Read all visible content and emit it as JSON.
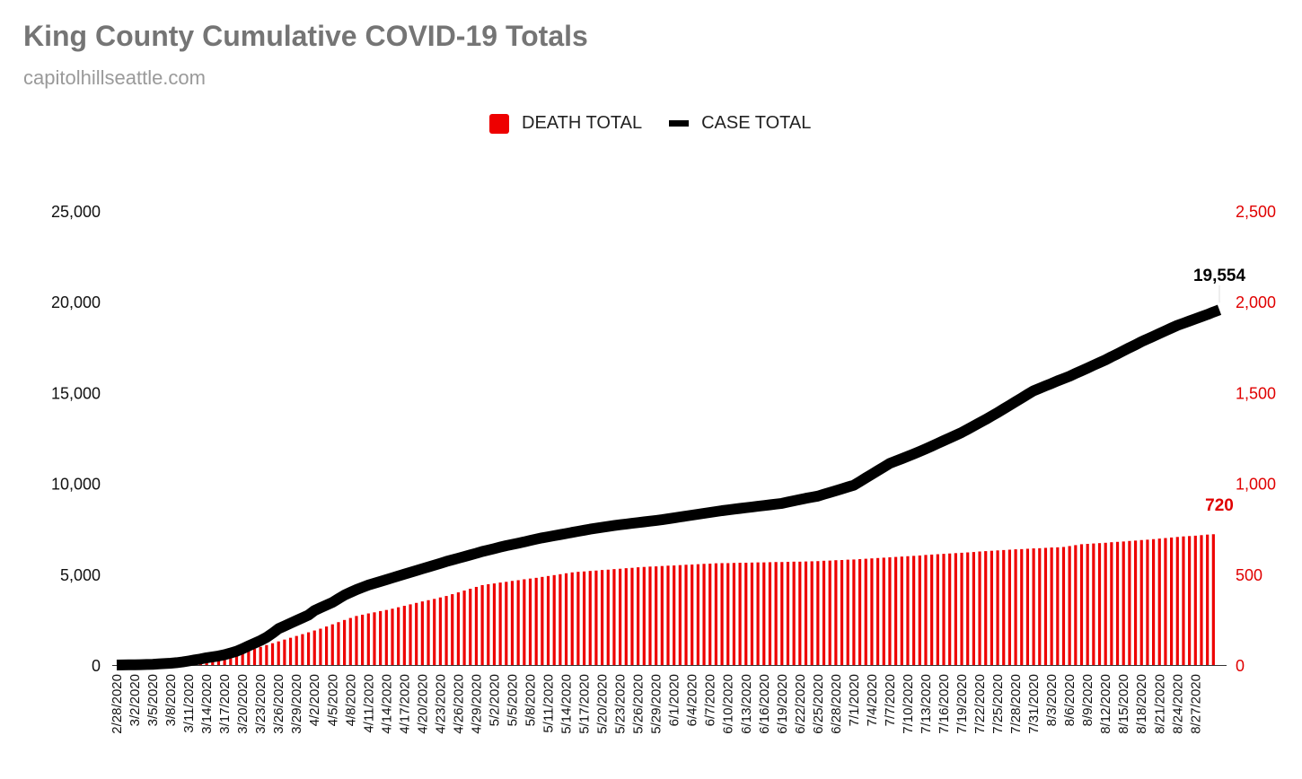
{
  "header": {
    "title": "King County Cumulative COVID-19 Totals",
    "subtitle": "capitolhillseattle.com"
  },
  "legend": [
    {
      "label": "DEATH TOTAL",
      "color": "#ee0000",
      "shape": "square"
    },
    {
      "label": "CASE TOTAL",
      "color": "#000000",
      "shape": "line"
    }
  ],
  "chart_data": {
    "type": "bar+line",
    "title": "King County Cumulative COVID-19 Totals",
    "subtitle": "capitolhillseattle.com",
    "legend_position": "top-center",
    "grid": false,
    "start_date": "2020-02-28",
    "skipped_dates": [
      "2020-03-31"
    ],
    "x_tick_labels": [
      "2/28/2020",
      "3/2/2020",
      "3/5/2020",
      "3/8/2020",
      "3/11/2020",
      "3/14/2020",
      "3/17/2020",
      "3/20/2020",
      "3/23/2020",
      "3/26/2020",
      "3/29/2020",
      "4/2/2020",
      "4/5/2020",
      "4/8/2020",
      "4/11/2020",
      "4/14/2020",
      "4/17/2020",
      "4/20/2020",
      "4/23/2020",
      "4/26/2020",
      "4/29/2020",
      "5/2/2020",
      "5/5/2020",
      "5/8/2020",
      "5/11/2020",
      "5/14/2020",
      "5/17/2020",
      "5/20/2020",
      "5/23/2020",
      "5/26/2020",
      "5/29/2020",
      "6/1/2020",
      "6/4/2020",
      "6/7/2020",
      "6/10/2020",
      "6/13/2020",
      "6/16/2020",
      "6/19/2020",
      "6/22/2020",
      "6/25/2020",
      "6/28/2020",
      "7/1/2020",
      "7/4/2020",
      "7/7/2020",
      "7/10/2020",
      "7/13/2020",
      "7/16/2020",
      "7/19/2020",
      "7/22/2020",
      "7/25/2020",
      "7/28/2020",
      "7/31/2020",
      "8/3/2020",
      "8/6/2020",
      "8/9/2020",
      "8/12/2020",
      "8/15/2020",
      "8/18/2020",
      "8/21/2020",
      "8/24/2020",
      "8/27/2020"
    ],
    "y_left": {
      "label": "Case total",
      "min": 0,
      "max": 25000,
      "ticks": [
        "0",
        "5,000",
        "10,000",
        "15,000",
        "20,000",
        "25,000"
      ],
      "color": "#111111"
    },
    "y_right": {
      "label": "Death total",
      "min": 0,
      "max": 2500,
      "ticks": [
        "0",
        "500",
        "1,000",
        "1,500",
        "2,000",
        "2,500"
      ],
      "color": "#e00000"
    },
    "series": [
      {
        "name": "CASE TOTAL",
        "type": "line",
        "axis": "left",
        "color": "#000000",
        "end_label": "19,554",
        "values": [
          0,
          5,
          10,
          15,
          20,
          30,
          40,
          60,
          80,
          100,
          130,
          170,
          220,
          280,
          330,
          400,
          450,
          500,
          570,
          660,
          760,
          900,
          1050,
          1200,
          1350,
          1520,
          1750,
          2000,
          2150,
          2300,
          2450,
          2600,
          2750,
          3000,
          3150,
          3300,
          3450,
          3650,
          3850,
          4000,
          4150,
          4280,
          4400,
          4500,
          4600,
          4700,
          4800,
          4900,
          5000,
          5100,
          5200,
          5300,
          5400,
          5500,
          5600,
          5700,
          5790,
          5880,
          5970,
          6060,
          6150,
          6250,
          6330,
          6410,
          6490,
          6570,
          6640,
          6710,
          6780,
          6860,
          6930,
          7000,
          7060,
          7120,
          7180,
          7240,
          7300,
          7360,
          7420,
          7480,
          7530,
          7580,
          7630,
          7680,
          7720,
          7760,
          7800,
          7840,
          7880,
          7920,
          7960,
          8000,
          8050,
          8100,
          8150,
          8200,
          8250,
          8300,
          8350,
          8400,
          8450,
          8500,
          8540,
          8580,
          8620,
          8660,
          8700,
          8740,
          8780,
          8820,
          8860,
          8900,
          8970,
          9040,
          9110,
          9180,
          9240,
          9300,
          9400,
          9500,
          9600,
          9700,
          9800,
          9900,
          10100,
          10300,
          10500,
          10700,
          10900,
          11100,
          11230,
          11360,
          11490,
          11620,
          11760,
          11900,
          12050,
          12200,
          12350,
          12500,
          12650,
          12800,
          12980,
          13160,
          13340,
          13520,
          13710,
          13900,
          14100,
          14300,
          14500,
          14700,
          14900,
          15100,
          15230,
          15370,
          15500,
          15640,
          15770,
          15900,
          16050,
          16200,
          16350,
          16500,
          16650,
          16800,
          16970,
          17130,
          17300,
          17470,
          17630,
          17800,
          17950,
          18100,
          18250,
          18400,
          18550,
          18700,
          18820,
          18940,
          19060,
          19180,
          19300,
          19430,
          19554
        ]
      },
      {
        "name": "DEATH TOTAL",
        "type": "bar",
        "axis": "right",
        "color": "#ee0000",
        "end_label": "720",
        "values": [
          0,
          0,
          0,
          1,
          2,
          3,
          5,
          6,
          8,
          10,
          12,
          15,
          18,
          22,
          26,
          30,
          36,
          43,
          50,
          56,
          63,
          70,
          80,
          90,
          100,
          110,
          120,
          130,
          140,
          150,
          160,
          170,
          180,
          190,
          200,
          212,
          224,
          236,
          248,
          259,
          270,
          277,
          284,
          290,
          297,
          303,
          310,
          318,
          326,
          334,
          342,
          350,
          357,
          364,
          372,
          380,
          390,
          400,
          410,
          420,
          430,
          440,
          445,
          449,
          454,
          458,
          463,
          467,
          472,
          476,
          480,
          485,
          490,
          495,
          500,
          505,
          510,
          513,
          515,
          518,
          520,
          523,
          525,
          528,
          530,
          533,
          535,
          538,
          540,
          542,
          543,
          545,
          547,
          548,
          550,
          552,
          553,
          555,
          557,
          558,
          560,
          561,
          561,
          562,
          563,
          563,
          564,
          565,
          565,
          566,
          567,
          567,
          568,
          569,
          569,
          570,
          571,
          572,
          574,
          575,
          577,
          578,
          580,
          581,
          583,
          585,
          587,
          589,
          591,
          593,
          595,
          597,
          599,
          601,
          603,
          606,
          608,
          610,
          612,
          614,
          616,
          618,
          620,
          622,
          625,
          627,
          629,
          631,
          633,
          635,
          637,
          638,
          640,
          642,
          643,
          645,
          647,
          648,
          650,
          655,
          660,
          665,
          667,
          669,
          671,
          673,
          676,
          678,
          680,
          683,
          685,
          688,
          690,
          693,
          696,
          699,
          702,
          705,
          708,
          710,
          712,
          715,
          718,
          720
        ]
      }
    ]
  }
}
